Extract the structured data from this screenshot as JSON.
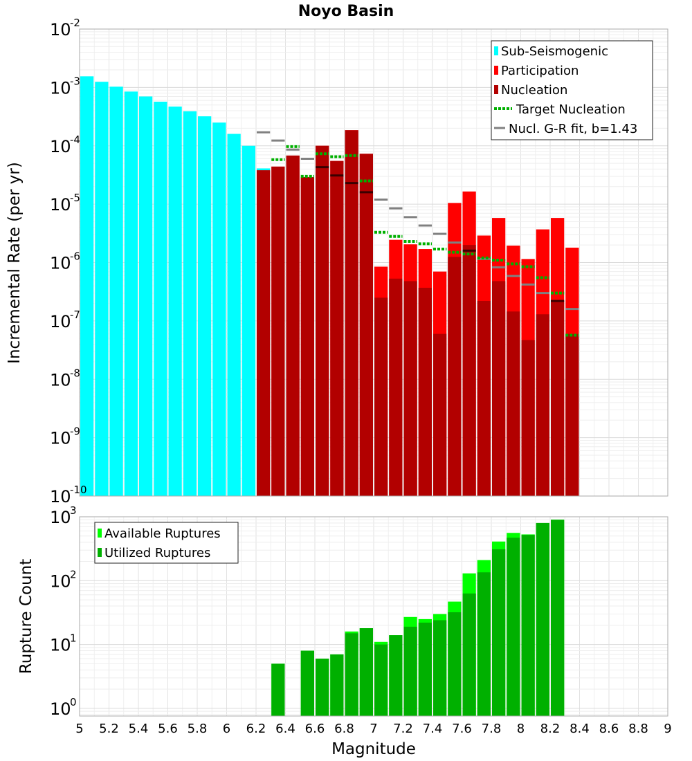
{
  "chart_data": [
    {
      "type": "bar",
      "title": "Noyo Basin",
      "ylabel": "Incremental Rate (per yr)",
      "xlabel": "",
      "yscale": "log",
      "ylim_exp": [
        -10,
        -2
      ],
      "xlim": [
        5.0,
        9.0
      ],
      "bin_width": 0.1,
      "y_tick_exponents": [
        "-10",
        "-9",
        "-8",
        "-7",
        "-6",
        "-5",
        "-4",
        "-3",
        "-2"
      ],
      "legend_position": "top-right",
      "legend": {
        "sub_seismogenic": "Sub-Seismogenic",
        "participation": "Participation",
        "nucleation": "Nucleation",
        "target_nucleation": "Target Nucleation",
        "gr_fit": "Nucl. G-R fit, b=1.43"
      },
      "colors": {
        "sub_seismogenic": "#00ffff",
        "participation": "#ff0000",
        "nucleation": "#b20000",
        "target_nucleation": "#00b000",
        "gr_fit": "#808080",
        "gr_fit_over_bar": "#3a0000"
      },
      "series": [
        {
          "name": "Sub-Seismogenic",
          "x": [
            5.05,
            5.15,
            5.25,
            5.35,
            5.45,
            5.55,
            5.65,
            5.75,
            5.85,
            5.95,
            6.05,
            6.15,
            6.25
          ],
          "values": [
            0.00155,
            0.00125,
            0.00103,
            0.00085,
            0.0007,
            0.00057,
            0.00047,
            0.00039,
            0.00032,
            0.00025,
            0.00016,
            0.0001,
            4.1e-05
          ]
        },
        {
          "name": "Participation",
          "x": [
            6.25,
            6.35,
            6.45,
            6.55,
            6.65,
            6.75,
            6.85,
            6.95,
            7.05,
            7.15,
            7.25,
            7.35,
            7.45,
            7.55,
            7.65,
            7.75,
            7.85,
            7.95,
            8.05,
            8.15,
            8.25,
            8.35
          ],
          "values": [
            3.8e-05,
            4.4e-05,
            6.8e-05,
            2.9e-05,
            0.0001,
            5.5e-05,
            0.000185,
            7.3e-05,
            8.5e-07,
            2.45e-06,
            2.05e-06,
            1.7e-06,
            7e-07,
            1.05e-05,
            1.65e-05,
            2.9e-06,
            5.8e-06,
            1.95e-06,
            1.15e-06,
            3.7e-06,
            5.8e-06,
            1.8e-06
          ]
        },
        {
          "name": "Nucleation",
          "x": [
            6.25,
            6.35,
            6.45,
            6.55,
            6.65,
            6.75,
            6.85,
            6.95,
            7.05,
            7.15,
            7.25,
            7.35,
            7.45,
            7.55,
            7.65,
            7.75,
            7.85,
            7.95,
            8.05,
            8.15,
            8.25,
            8.35
          ],
          "values": [
            3.8e-05,
            4.4e-05,
            6.8e-05,
            2.9e-05,
            0.0001,
            5.5e-05,
            0.000185,
            7.3e-05,
            2.5e-07,
            5.3e-07,
            4.8e-07,
            3.7e-07,
            6e-08,
            1.25e-06,
            2e-06,
            2.2e-07,
            4.8e-07,
            1.45e-07,
            4.7e-08,
            1.3e-07,
            2.2e-07,
            6e-08
          ]
        },
        {
          "name": "Target Nucleation",
          "x": [
            6.35,
            6.45,
            6.55,
            6.65,
            6.75,
            6.85,
            6.95,
            7.05,
            7.15,
            7.25,
            7.35,
            7.45,
            7.55,
            7.65,
            7.75,
            7.85,
            7.95,
            8.05,
            8.15,
            8.25,
            8.35
          ],
          "values": [
            5.8e-05,
            9.7e-05,
            3e-05,
            7.3e-05,
            6.5e-05,
            6.8e-05,
            2.5e-05,
            3.3e-06,
            2.8e-06,
            2.3e-06,
            2.1e-06,
            1.7e-06,
            1.5e-06,
            1.4e-06,
            1.2e-06,
            1.1e-06,
            9.5e-07,
            8.5e-07,
            5.5e-07,
            3e-07,
            5.7e-08
          ]
        },
        {
          "name": "Nucl. G-R fit, b=1.43",
          "x": [
            6.25,
            6.35,
            6.45,
            6.55,
            6.65,
            6.75,
            6.85,
            6.95,
            7.05,
            7.15,
            7.25,
            7.35,
            7.45,
            7.55,
            7.65,
            7.75,
            7.85,
            7.95,
            8.05,
            8.15,
            8.25,
            8.35
          ],
          "values": [
            0.00017,
            0.000123,
            8.6e-05,
            6e-05,
            4.3e-05,
            3.1e-05,
            2.3e-05,
            1.6e-05,
            1.2e-05,
            8.5e-06,
            6e-06,
            4.3e-06,
            3.1e-06,
            2.2e-06,
            1.6e-06,
            1.15e-06,
            8.3e-07,
            5.9e-07,
            4.2e-07,
            3e-07,
            2.2e-07,
            1.6e-07
          ]
        }
      ]
    },
    {
      "type": "bar",
      "title": "",
      "ylabel": "Rupture Count",
      "xlabel": "Magnitude",
      "yscale": "log",
      "ylim_exp": [
        -0.12,
        3
      ],
      "xlim": [
        5.0,
        9.0
      ],
      "bin_width": 0.1,
      "y_tick_exponents": [
        "0",
        "1",
        "2",
        "3"
      ],
      "x_tick_labels": [
        "5",
        "5.2",
        "5.4",
        "5.6",
        "5.8",
        "6",
        "6.2",
        "6.4",
        "6.6",
        "6.8",
        "7",
        "7.2",
        "7.4",
        "7.6",
        "7.8",
        "8",
        "8.2",
        "8.4",
        "8.6",
        "8.8",
        "9"
      ],
      "legend_position": "top-left",
      "legend": {
        "available": "Available Ruptures",
        "utilized": "Utilized Ruptures"
      },
      "colors": {
        "available": "#00ff00",
        "utilized": "#00b000"
      },
      "series": [
        {
          "name": "Available Ruptures",
          "x": [
            6.35,
            6.55,
            6.65,
            6.75,
            6.85,
            6.95,
            7.05,
            7.15,
            7.25,
            7.35,
            7.45,
            7.55,
            7.65,
            7.75,
            7.85,
            7.95,
            8.05,
            8.15,
            8.25
          ],
          "values": [
            5,
            8,
            6,
            7,
            16,
            18,
            11,
            14,
            27,
            25,
            30,
            47,
            130,
            210,
            410,
            560,
            530,
            800,
            900
          ]
        },
        {
          "name": "Utilized Ruptures",
          "x": [
            6.35,
            6.55,
            6.65,
            6.75,
            6.85,
            6.95,
            7.05,
            7.15,
            7.25,
            7.35,
            7.45,
            7.55,
            7.65,
            7.75,
            7.85,
            7.95,
            8.05,
            8.15,
            8.25
          ],
          "values": [
            5,
            8,
            6,
            7,
            15,
            18,
            10,
            14,
            19,
            22,
            24,
            32,
            63,
            135,
            310,
            470,
            520,
            800,
            900
          ]
        }
      ]
    }
  ]
}
